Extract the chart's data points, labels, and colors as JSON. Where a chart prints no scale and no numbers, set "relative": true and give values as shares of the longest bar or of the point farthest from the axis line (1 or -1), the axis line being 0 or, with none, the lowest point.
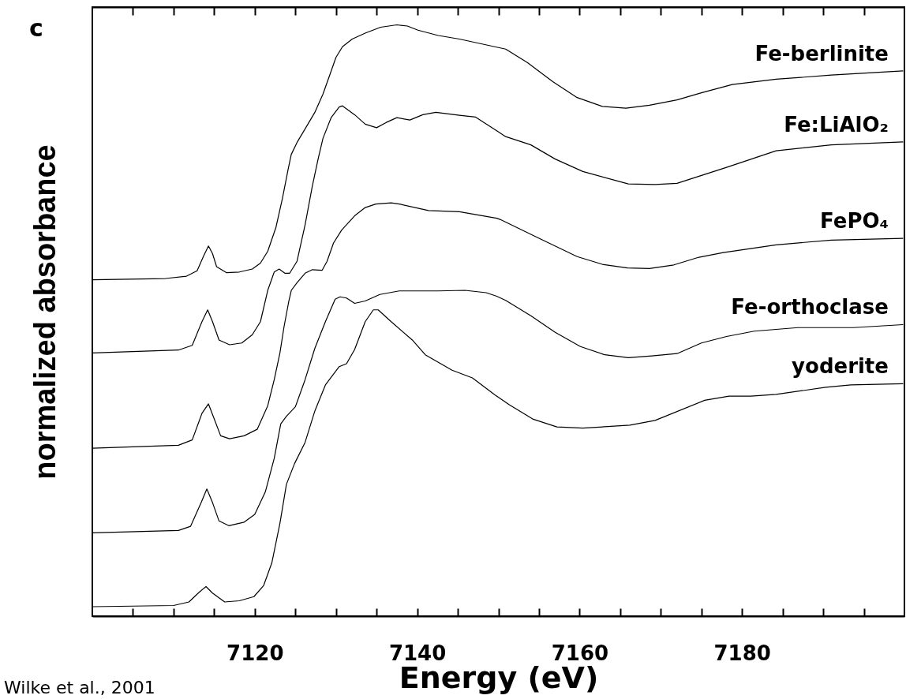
{
  "chart_data": {
    "type": "line",
    "relative": true,
    "xlabel": "Energy (eV)",
    "ylabel": "normalized absorbance",
    "xlim": [
      7100,
      7200
    ],
    "xticks": [
      {
        "value": 7105,
        "label": null
      },
      {
        "value": 7110,
        "label": null
      },
      {
        "value": 7115,
        "label": null
      },
      7120,
      {
        "value": 7125,
        "label": null
      },
      {
        "value": 7130,
        "label": null
      },
      {
        "value": 7135,
        "label": null
      },
      7140,
      {
        "value": 7145,
        "label": null
      },
      {
        "value": 7150,
        "label": null
      },
      {
        "value": 7155,
        "label": null
      },
      7160,
      {
        "value": 7165,
        "label": null
      },
      {
        "value": 7170,
        "label": null
      },
      {
        "value": 7175,
        "label": null
      },
      7180,
      {
        "value": 7185,
        "label": null
      },
      {
        "value": 7190,
        "label": null
      },
      {
        "value": 7195,
        "label": null
      }
    ],
    "annotations": [
      "c",
      "Wilke et al., 2001"
    ],
    "series": [
      {
        "name": "Fe-berlinite",
        "color": "#000000",
        "x": [
          7100.0,
          7109.0,
          7111.6,
          7112.9,
          7113.7,
          7114.3,
          7114.8,
          7115.3,
          7116.5,
          7118.1,
          7119.7,
          7120.7,
          7121.6,
          7122.6,
          7123.4,
          7124.1,
          7124.5,
          7125.2,
          7126.2,
          7127.4,
          7128.4,
          7129.1,
          7130.0,
          7130.8,
          7132.0,
          7133.6,
          7135.5,
          7137.5,
          7138.8,
          7140.1,
          7142.6,
          7145.2,
          7150.9,
          7153.6,
          7156.7,
          7159.7,
          7162.8,
          7165.7,
          7168.6,
          7172.0,
          7175.0,
          7178.8,
          7184.2,
          7191.0,
          7199.8
        ],
        "values": [
          0.569,
          0.571,
          0.575,
          0.584,
          0.609,
          0.626,
          0.613,
          0.591,
          0.581,
          0.582,
          0.587,
          0.597,
          0.617,
          0.657,
          0.706,
          0.755,
          0.781,
          0.801,
          0.824,
          0.852,
          0.883,
          0.91,
          0.945,
          0.963,
          0.976,
          0.986,
          0.996,
          1.0,
          0.998,
          0.991,
          0.982,
          0.976,
          0.959,
          0.936,
          0.904,
          0.877,
          0.862,
          0.859,
          0.864,
          0.873,
          0.885,
          0.899,
          0.908,
          0.915,
          0.922
        ]
      },
      {
        "name": "Fe:LiAlO₂",
        "color": "#000000",
        "x": [
          7100.0,
          7110.6,
          7112.3,
          7113.5,
          7114.2,
          7114.8,
          7115.6,
          7116.9,
          7118.4,
          7119.7,
          7120.7,
          7121.6,
          7122.4,
          7123.0,
          7123.7,
          7124.3,
          7125.2,
          7126.2,
          7127.1,
          7127.8,
          7128.4,
          7129.4,
          7130.4,
          7130.8,
          7132.3,
          7133.6,
          7135.0,
          7136.2,
          7137.5,
          7139.1,
          7140.7,
          7142.3,
          7145.2,
          7147.2,
          7149.8,
          7150.9,
          7154.0,
          7157.0,
          7160.4,
          7166.0,
          7169.3,
          7172.0,
          7178.1,
          7184.2,
          7191.0,
          7199.8
        ],
        "values": [
          0.445,
          0.45,
          0.458,
          0.498,
          0.518,
          0.498,
          0.467,
          0.459,
          0.462,
          0.476,
          0.498,
          0.551,
          0.582,
          0.587,
          0.58,
          0.58,
          0.6,
          0.662,
          0.728,
          0.773,
          0.808,
          0.843,
          0.861,
          0.863,
          0.848,
          0.832,
          0.826,
          0.835,
          0.843,
          0.839,
          0.848,
          0.852,
          0.847,
          0.844,
          0.821,
          0.811,
          0.797,
          0.773,
          0.752,
          0.731,
          0.73,
          0.732,
          0.759,
          0.787,
          0.797,
          0.802
        ]
      },
      {
        "name": "FePO₄",
        "color": "#000000",
        "x": [
          7100.0,
          7110.6,
          7112.3,
          7113.5,
          7114.3,
          7115.0,
          7115.8,
          7116.9,
          7118.7,
          7120.3,
          7121.6,
          7122.4,
          7123.1,
          7123.6,
          7124.2,
          7124.5,
          7125.2,
          7126.2,
          7127.1,
          7128.3,
          7128.9,
          7129.7,
          7130.7,
          7132.3,
          7133.6,
          7134.9,
          7136.8,
          7137.8,
          7141.4,
          7145.2,
          7149.8,
          7150.2,
          7154.7,
          7159.7,
          7162.8,
          7165.9,
          7168.6,
          7171.6,
          7174.7,
          7177.7,
          7184.2,
          7191.0,
          7199.8
        ],
        "values": [
          0.284,
          0.289,
          0.298,
          0.343,
          0.359,
          0.334,
          0.305,
          0.3,
          0.305,
          0.316,
          0.356,
          0.4,
          0.445,
          0.489,
          0.533,
          0.551,
          0.564,
          0.58,
          0.586,
          0.585,
          0.6,
          0.631,
          0.653,
          0.677,
          0.691,
          0.697,
          0.699,
          0.697,
          0.686,
          0.684,
          0.673,
          0.671,
          0.641,
          0.608,
          0.595,
          0.589,
          0.588,
          0.594,
          0.607,
          0.615,
          0.628,
          0.636,
          0.639
        ]
      },
      {
        "name": "Fe-orthoclase",
        "color": "#000000",
        "x": [
          7100.0,
          7110.6,
          7112.1,
          7113.4,
          7114.1,
          7114.8,
          7115.6,
          7116.8,
          7118.7,
          7120.0,
          7121.3,
          7122.4,
          7123.2,
          7123.9,
          7125.0,
          7126.2,
          7127.4,
          7128.7,
          7129.9,
          7130.5,
          7131.3,
          7132.3,
          7133.6,
          7135.4,
          7137.8,
          7142.6,
          7145.9,
          7148.5,
          7149.8,
          7150.9,
          7154.0,
          7157.0,
          7160.1,
          7163.1,
          7166.0,
          7168.9,
          7172.0,
          7175.0,
          7178.1,
          7181.5,
          7186.9,
          7193.7,
          7199.8
        ],
        "values": [
          0.141,
          0.145,
          0.152,
          0.192,
          0.215,
          0.192,
          0.161,
          0.153,
          0.159,
          0.172,
          0.21,
          0.267,
          0.325,
          0.338,
          0.354,
          0.4,
          0.453,
          0.498,
          0.536,
          0.54,
          0.538,
          0.529,
          0.533,
          0.544,
          0.55,
          0.55,
          0.551,
          0.547,
          0.541,
          0.534,
          0.508,
          0.48,
          0.456,
          0.442,
          0.437,
          0.44,
          0.444,
          0.462,
          0.473,
          0.482,
          0.488,
          0.488,
          0.493
        ]
      },
      {
        "name": "yoderite",
        "color": "#000000",
        "x": [
          7100.0,
          7110.0,
          7111.9,
          7113.2,
          7114.0,
          7114.8,
          7116.3,
          7118.1,
          7119.9,
          7121.1,
          7122.1,
          7123.1,
          7123.9,
          7124.9,
          7126.2,
          7127.4,
          7128.7,
          7130.4,
          7131.3,
          7132.3,
          7133.6,
          7134.6,
          7135.2,
          7136.8,
          7139.4,
          7141.0,
          7144.3,
          7146.8,
          7149.6,
          7151.3,
          7154.3,
          7157.2,
          7160.4,
          7166.2,
          7169.3,
          7175.4,
          7178.4,
          7181.1,
          7184.2,
          7190.3,
          7193.4,
          7199.8
        ],
        "values": [
          0.016,
          0.018,
          0.024,
          0.041,
          0.05,
          0.039,
          0.024,
          0.026,
          0.033,
          0.052,
          0.09,
          0.157,
          0.223,
          0.258,
          0.294,
          0.347,
          0.391,
          0.422,
          0.427,
          0.451,
          0.498,
          0.518,
          0.518,
          0.498,
          0.467,
          0.442,
          0.416,
          0.403,
          0.374,
          0.358,
          0.333,
          0.32,
          0.318,
          0.323,
          0.331,
          0.365,
          0.372,
          0.372,
          0.375,
          0.387,
          0.391,
          0.393
        ]
      }
    ]
  }
}
